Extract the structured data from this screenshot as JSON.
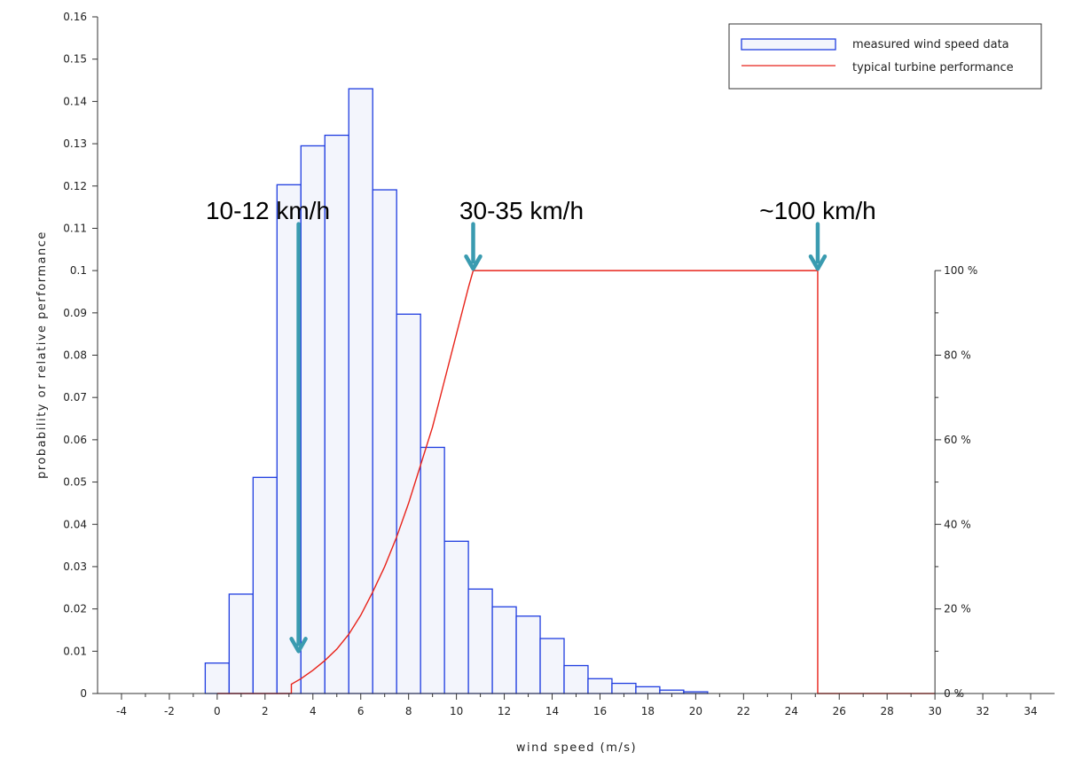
{
  "chart_data": {
    "type": "bar",
    "xlabel": "wind speed (m/s)",
    "ylabel": "probability or relative performance",
    "xlim": [
      -5,
      35
    ],
    "ylim": [
      0,
      0.16
    ],
    "x_ticks": [
      -4,
      -2,
      0,
      2,
      4,
      6,
      8,
      10,
      12,
      14,
      16,
      18,
      20,
      22,
      24,
      26,
      28,
      30,
      32,
      34
    ],
    "y_ticks": [
      "0",
      "0.01",
      "0.02",
      "0.03",
      "0.04",
      "0.05",
      "0.06",
      "0.07",
      "0.08",
      "0.09",
      "0.1",
      "0.11",
      "0.12",
      "0.13",
      "0.14",
      "0.15",
      "0.16"
    ],
    "y2_ticks": [
      {
        "label": "0 %",
        "value": 0
      },
      {
        "label": "20 %",
        "value": 0.02
      },
      {
        "label": "40 %",
        "value": 0.04
      },
      {
        "label": "60 %",
        "value": 0.06
      },
      {
        "label": "80 %",
        "value": 0.08
      },
      {
        "label": "100 %",
        "value": 0.1
      }
    ],
    "grid": false,
    "legend_position": "top-right",
    "series": [
      {
        "name": "measured wind speed data",
        "kind": "histogram",
        "color": "#1f3de0",
        "fill": "#f3f5fc",
        "bin_width": 1,
        "centers": [
          0,
          1,
          2,
          3,
          4,
          5,
          6,
          7,
          8,
          9,
          10,
          11,
          12,
          13,
          14,
          15,
          16,
          17,
          18,
          19,
          20
        ],
        "values": [
          0.0072,
          0.0235,
          0.0511,
          0.1203,
          0.1295,
          0.132,
          0.143,
          0.1191,
          0.0897,
          0.0582,
          0.036,
          0.0247,
          0.0205,
          0.0183,
          0.013,
          0.0066,
          0.0035,
          0.0024,
          0.0016,
          0.0008,
          0.0004
        ]
      },
      {
        "name": "typical turbine performance",
        "kind": "line",
        "color": "#e8231a",
        "x": [
          0,
          3.1,
          3.1,
          3.5,
          4,
          4.5,
          5,
          5.5,
          6,
          6.5,
          7,
          7.5,
          8,
          8.5,
          9,
          9.5,
          10,
          10.5,
          10.7,
          25.1,
          25.1,
          30
        ],
        "y": [
          0,
          0,
          0.0022,
          0.0035,
          0.0055,
          0.0078,
          0.0105,
          0.014,
          0.0185,
          0.024,
          0.03,
          0.037,
          0.045,
          0.054,
          0.063,
          0.074,
          0.085,
          0.096,
          0.1,
          0.1,
          0,
          0
        ]
      }
    ],
    "annotations": [
      {
        "text": "10-12 km/h",
        "x": 3.4,
        "y_top": 0.111,
        "y_arrow": 0.01
      },
      {
        "text": "30-35 km/h",
        "x": 10.7,
        "y_top": 0.111,
        "y_arrow": 0.1
      },
      {
        "text": "~100 km/h",
        "x": 25.1,
        "y_top": 0.111,
        "y_arrow": 0.1
      }
    ],
    "colors": {
      "annotation_arrow": "#3a9bb0",
      "axis": "#333333"
    }
  }
}
